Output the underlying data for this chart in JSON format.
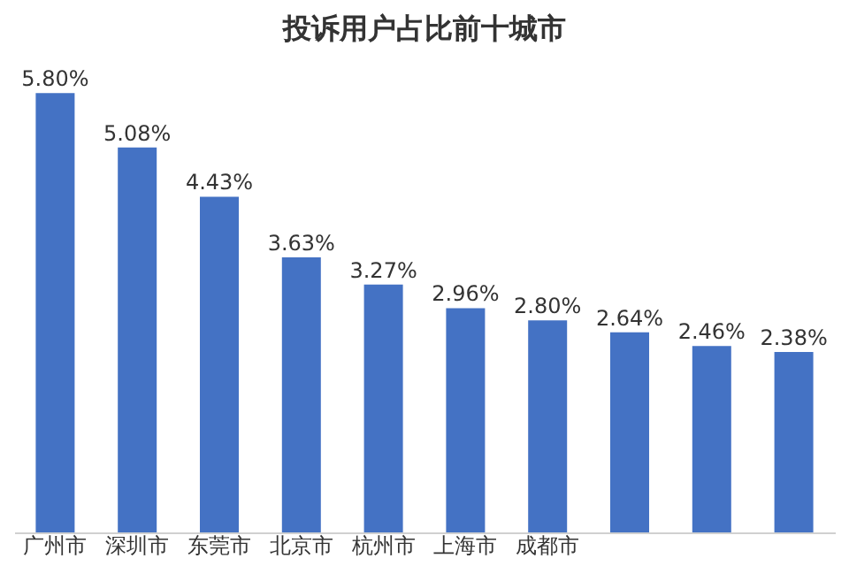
{
  "chart_data": {
    "type": "bar",
    "title": "投诉用户占比前十城市",
    "categories": [
      "广州市",
      "深圳市",
      "东莞市",
      "北京市",
      "杭州市",
      "上海市",
      "成都市",
      null,
      null,
      null
    ],
    "values": [
      5.8,
      5.08,
      4.43,
      3.63,
      3.27,
      2.96,
      2.8,
      2.64,
      2.46,
      2.38
    ],
    "value_labels": [
      "5.80%",
      "5.08%",
      "4.43%",
      "3.63%",
      "3.27%",
      "2.96%",
      "2.80%",
      "2.64%",
      "2.46%",
      "2.38%"
    ],
    "color": "#4472c4",
    "grid": false
  }
}
